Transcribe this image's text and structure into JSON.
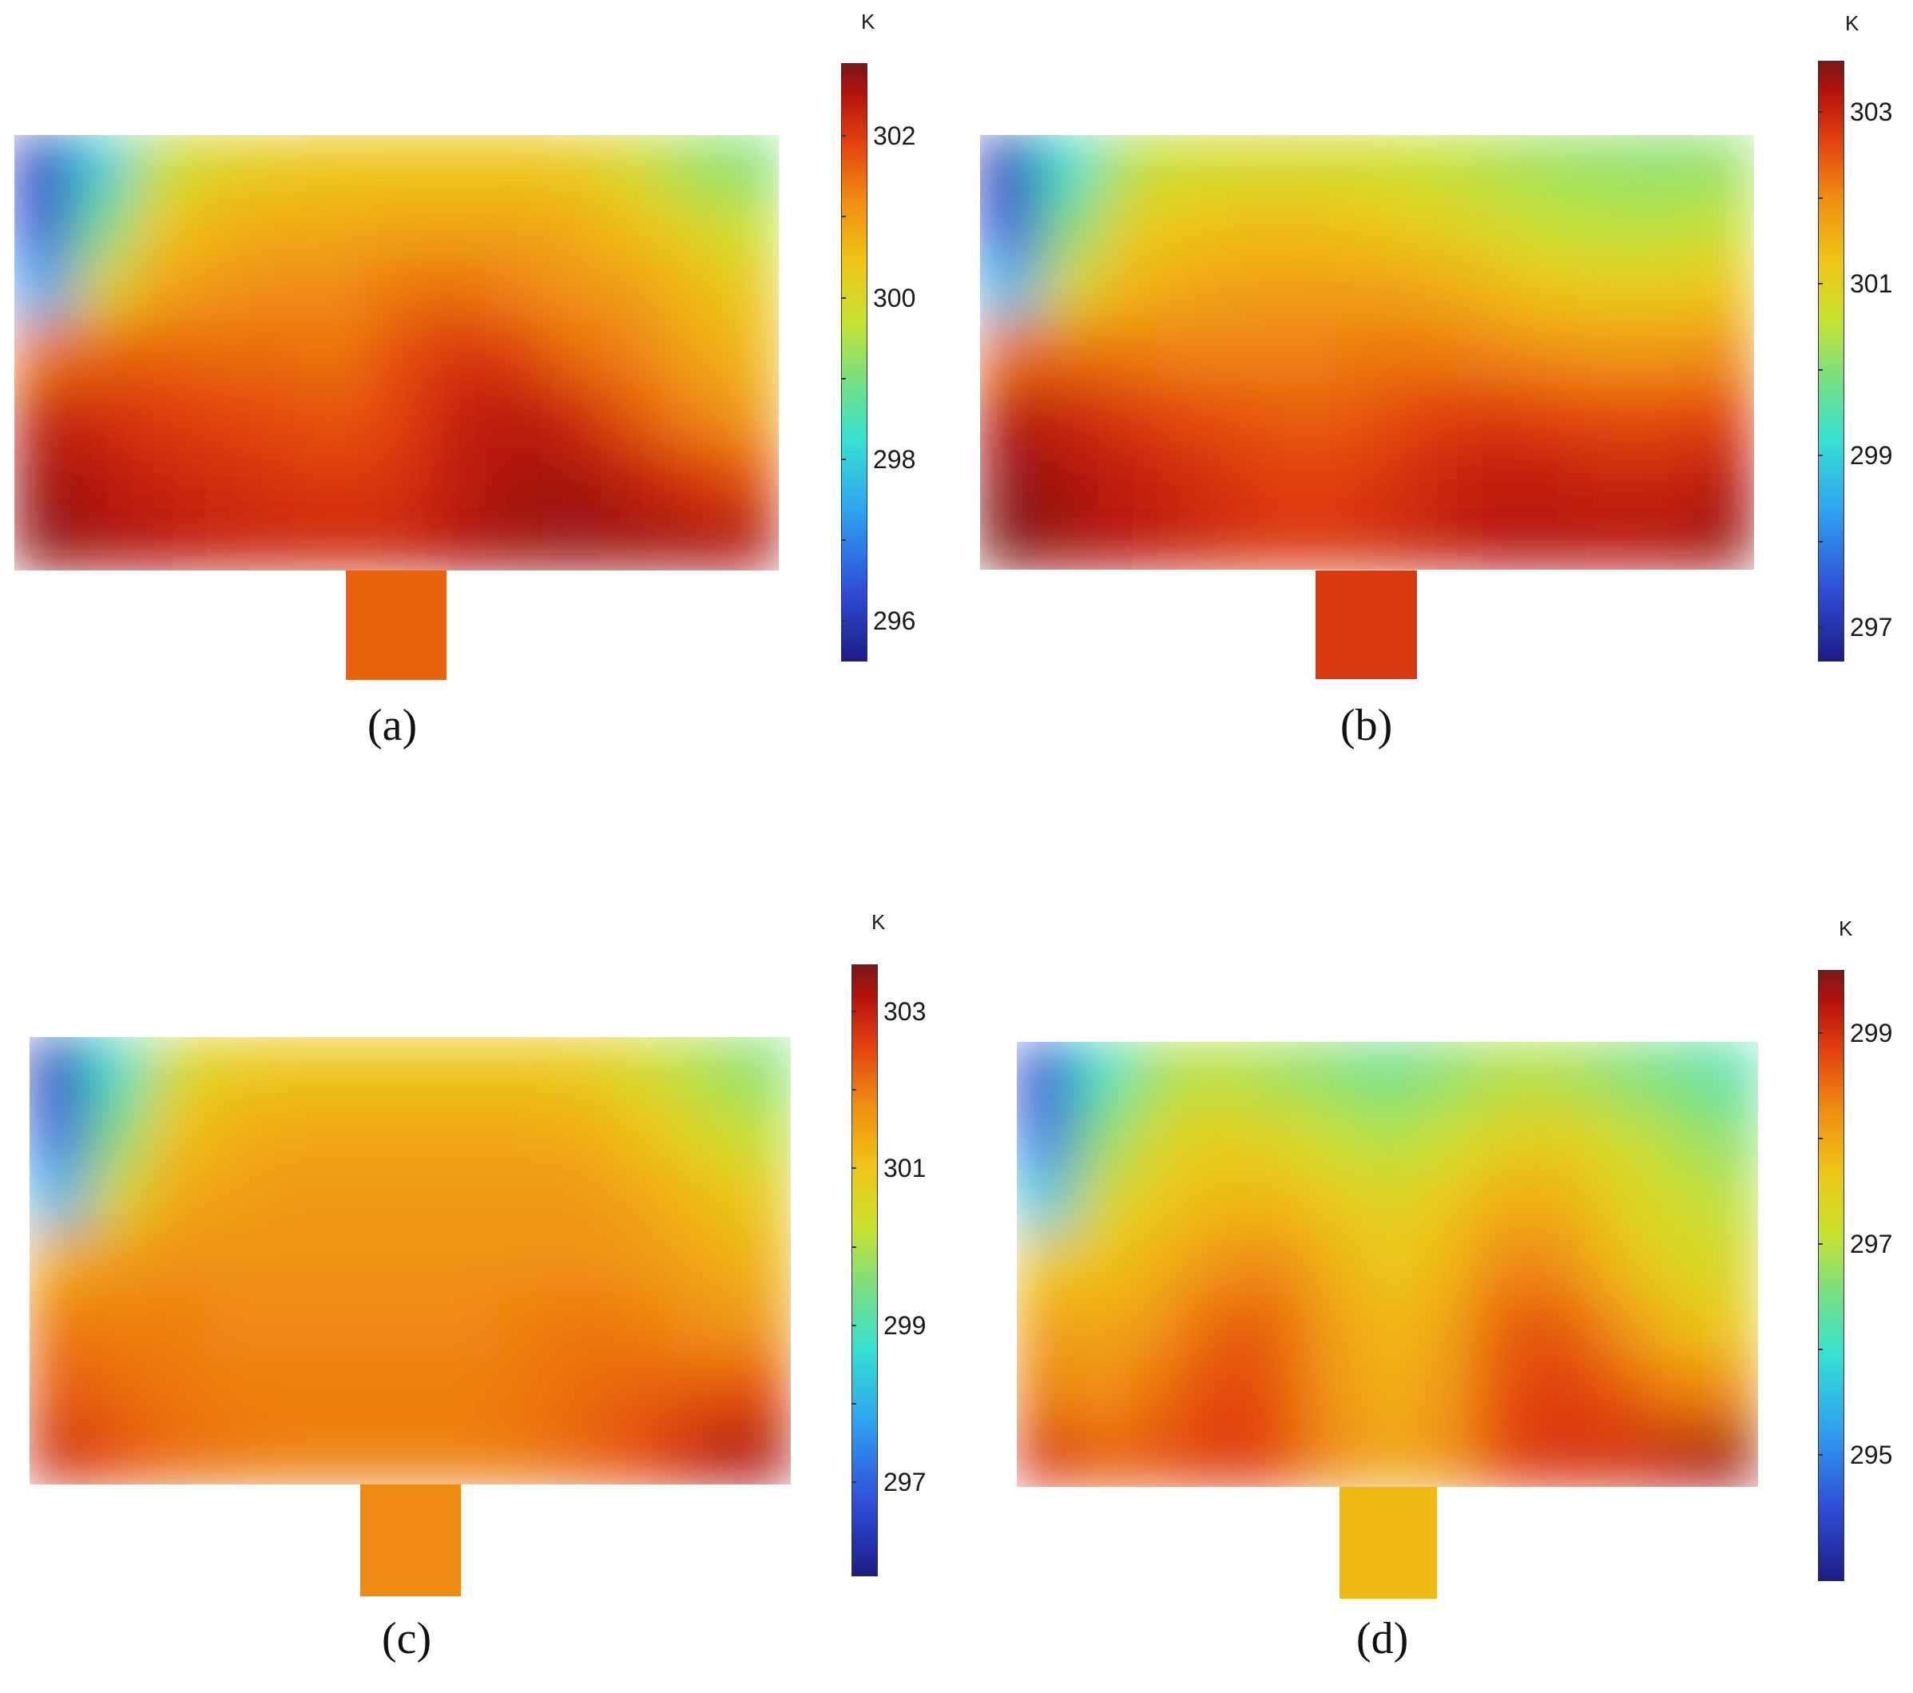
{
  "chart_data": [
    {
      "type": "heatmap",
      "panel_label": "(a)",
      "colorbar": {
        "unit": "K",
        "range": [
          295.5,
          302.9
        ],
        "ticks": [
          302,
          300,
          298,
          296
        ]
      },
      "colormap": [
        "#1c1c86",
        "#2f4ed8",
        "#2fa2f0",
        "#36e1d2",
        "#7fe07a",
        "#c9e230",
        "#f0c516",
        "#f08e12",
        "#e2400f",
        "#b3120c",
        "#781818"
      ],
      "inlet_temperature": 301.1,
      "field": [
        [
          296.0,
          297.5,
          299.1,
          299.6,
          299.8,
          299.9,
          299.9,
          299.9,
          299.9,
          299.8,
          299.4,
          298.8,
          298.5
        ],
        [
          296.2,
          298.3,
          299.9,
          300.2,
          300.3,
          300.3,
          300.4,
          300.4,
          300.4,
          300.3,
          300.0,
          299.6,
          299.2
        ],
        [
          297.0,
          299.6,
          300.4,
          300.6,
          300.7,
          300.7,
          300.9,
          301.0,
          300.8,
          300.6,
          300.5,
          300.1,
          299.8
        ],
        [
          300.9,
          301.1,
          301.1,
          301.0,
          301.0,
          300.9,
          301.3,
          301.6,
          301.5,
          301.0,
          300.8,
          300.4,
          300.1
        ],
        [
          301.9,
          301.7,
          301.5,
          301.4,
          301.3,
          301.2,
          301.4,
          301.9,
          302.1,
          301.8,
          301.2,
          300.8,
          300.5
        ],
        [
          302.4,
          302.1,
          301.8,
          301.7,
          301.6,
          301.5,
          301.6,
          302.0,
          302.3,
          302.3,
          302.0,
          301.6,
          301.3
        ],
        [
          302.6,
          302.3,
          302.1,
          301.9,
          301.8,
          301.7,
          301.8,
          302.1,
          302.4,
          302.5,
          302.4,
          302.3,
          302.2
        ]
      ]
    },
    {
      "type": "heatmap",
      "panel_label": "(b)",
      "colorbar": {
        "unit": "K",
        "range": [
          296.6,
          303.6
        ],
        "ticks": [
          303,
          301,
          299,
          297
        ]
      },
      "colormap": [
        "#1c1c86",
        "#2f4ed8",
        "#2fa2f0",
        "#36e1d2",
        "#7fe07a",
        "#c9e230",
        "#f0c516",
        "#f08e12",
        "#e2400f",
        "#b3120c",
        "#781818"
      ],
      "inlet_temperature": 302.3,
      "field": [
        [
          297.0,
          298.7,
          299.9,
          300.2,
          300.3,
          300.3,
          300.2,
          300.1,
          299.9,
          299.7,
          299.6,
          299.5,
          299.6
        ],
        [
          297.3,
          299.4,
          300.6,
          300.8,
          300.9,
          300.9,
          300.8,
          300.6,
          300.4,
          300.1,
          300.0,
          300.0,
          300.1
        ],
        [
          298.2,
          300.4,
          301.0,
          301.2,
          301.3,
          301.3,
          301.3,
          301.2,
          301.0,
          300.8,
          300.7,
          300.7,
          300.8
        ],
        [
          301.8,
          301.8,
          301.7,
          301.6,
          301.6,
          301.6,
          301.7,
          301.7,
          301.6,
          301.5,
          301.4,
          301.4,
          301.5
        ],
        [
          302.8,
          302.6,
          302.3,
          302.1,
          302.0,
          301.9,
          302.0,
          302.2,
          302.3,
          302.2,
          302.1,
          302.1,
          302.2
        ],
        [
          303.3,
          303.0,
          302.7,
          302.5,
          302.3,
          302.2,
          302.3,
          302.5,
          302.7,
          302.7,
          302.6,
          302.6,
          302.8
        ],
        [
          303.5,
          303.1,
          302.8,
          302.6,
          302.4,
          302.3,
          302.4,
          302.6,
          302.8,
          302.9,
          302.8,
          302.9,
          303.2
        ]
      ]
    },
    {
      "type": "heatmap",
      "panel_label": "(c)",
      "colorbar": {
        "unit": "K",
        "range": [
          295.8,
          303.6
        ],
        "ticks": [
          303,
          301,
          299,
          297
        ]
      },
      "colormap": [
        "#1c1c86",
        "#2f4ed8",
        "#2fa2f0",
        "#36e1d2",
        "#7fe07a",
        "#c9e230",
        "#f0c516",
        "#f08e12",
        "#e2400f",
        "#b3120c",
        "#781818"
      ],
      "inlet_temperature": 301.3,
      "field": [
        [
          296.3,
          298.2,
          299.9,
          300.3,
          300.4,
          300.4,
          300.4,
          300.4,
          300.4,
          300.3,
          299.9,
          299.4,
          299.0
        ],
        [
          296.7,
          298.9,
          300.5,
          300.8,
          300.9,
          300.9,
          300.9,
          300.9,
          300.9,
          300.8,
          300.5,
          300.0,
          299.6
        ],
        [
          297.6,
          300.0,
          300.9,
          301.0,
          301.1,
          301.1,
          301.1,
          301.1,
          301.1,
          301.1,
          300.9,
          300.6,
          300.3
        ],
        [
          300.8,
          301.1,
          301.2,
          301.2,
          301.2,
          301.2,
          301.2,
          301.2,
          301.2,
          301.2,
          301.1,
          300.9,
          300.7
        ],
        [
          301.5,
          301.4,
          301.4,
          301.3,
          301.3,
          301.3,
          301.3,
          301.3,
          301.4,
          301.5,
          301.4,
          301.2,
          301.1
        ],
        [
          301.8,
          301.6,
          301.5,
          301.4,
          301.4,
          301.4,
          301.4,
          301.4,
          301.5,
          301.6,
          301.7,
          301.8,
          301.9
        ],
        [
          302.4,
          301.9,
          301.6,
          301.5,
          301.4,
          301.4,
          301.4,
          301.4,
          301.5,
          301.7,
          302.0,
          302.6,
          302.9
        ]
      ]
    },
    {
      "type": "heatmap",
      "panel_label": "(d)",
      "colorbar": {
        "unit": "K",
        "range": [
          293.8,
          299.6
        ],
        "ticks": [
          299,
          297,
          295
        ]
      },
      "colormap": [
        "#1c1c86",
        "#2f4ed8",
        "#2fa2f0",
        "#36e1d2",
        "#7fe07a",
        "#c9e230",
        "#f0c516",
        "#f08e12",
        "#e2400f",
        "#b3120c",
        "#781818"
      ],
      "inlet_temperature": 297.4,
      "field": [
        [
          294.3,
          295.6,
          296.4,
          296.6,
          296.4,
          296.2,
          296.0,
          296.2,
          296.5,
          296.5,
          296.2,
          296.0,
          295.8
        ],
        [
          294.6,
          296.2,
          296.9,
          297.1,
          297.0,
          296.7,
          296.5,
          296.7,
          297.0,
          297.1,
          296.8,
          296.5,
          296.2
        ],
        [
          295.3,
          296.9,
          297.2,
          297.4,
          297.4,
          297.2,
          297.0,
          297.2,
          297.5,
          297.5,
          297.1,
          296.8,
          296.6
        ],
        [
          297.2,
          297.3,
          297.5,
          297.8,
          297.9,
          297.5,
          297.2,
          297.4,
          297.9,
          297.9,
          297.4,
          297.0,
          296.9
        ],
        [
          297.7,
          297.6,
          297.8,
          298.2,
          298.2,
          297.7,
          297.4,
          297.6,
          298.2,
          298.3,
          297.9,
          297.4,
          297.2
        ],
        [
          298.0,
          297.8,
          298.1,
          298.4,
          298.3,
          297.8,
          297.5,
          297.7,
          298.3,
          298.5,
          298.3,
          298.0,
          297.9
        ],
        [
          298.6,
          298.2,
          298.3,
          298.5,
          298.4,
          297.9,
          297.6,
          297.8,
          298.4,
          298.6,
          298.6,
          298.9,
          299.2
        ]
      ]
    }
  ]
}
